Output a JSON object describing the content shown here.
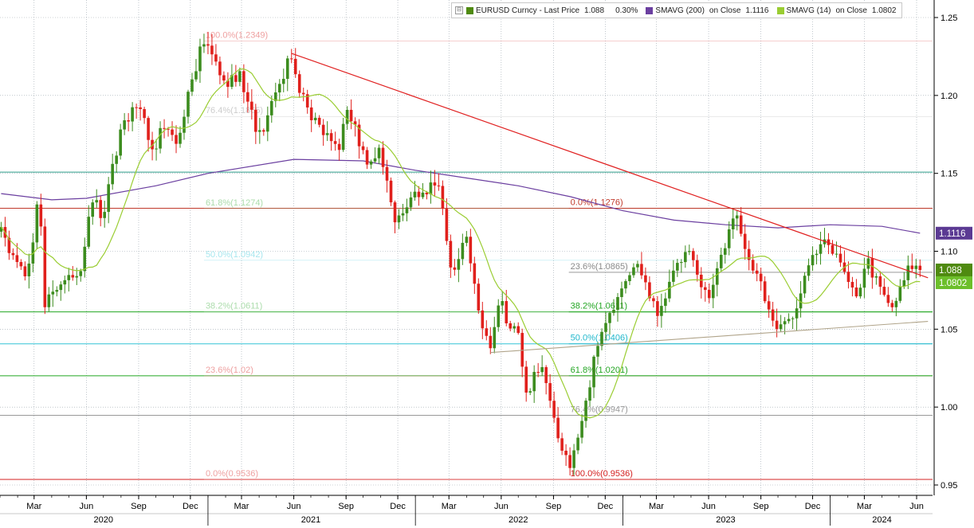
{
  "legend": {
    "close_glyph": "⊟",
    "price": {
      "name": "EURUSD Curncy - Last Price",
      "value": "1.088",
      "change": "0.30%",
      "color": "#4f8a10"
    },
    "sma200": {
      "name": "SMAVG (200)",
      "on": "on Close",
      "value": "1.1116",
      "color": "#6b3fa0"
    },
    "sma14": {
      "name": "SMAVG (14)",
      "on": "on Close",
      "value": "1.0802",
      "color": "#9acd32"
    }
  },
  "price_tags": [
    {
      "label": "1.1116",
      "value": 1.1116,
      "bg": "#5b3a93",
      "fg": "#ffffff"
    },
    {
      "label": "1.088",
      "value": 1.088,
      "bg": "#4f8a10",
      "fg": "#ffffff"
    },
    {
      "label": "1.0802",
      "value": 1.0802,
      "bg": "#6cbf2a",
      "fg": "#ffffff"
    }
  ],
  "colors": {
    "up": "#3c8c1e",
    "down": "#e0201c",
    "trend": "#e02020",
    "support": "#b0a48a",
    "sma200": "#6b3fa0",
    "sma14": "#9acd32"
  },
  "chart_data": {
    "type": "candlestick",
    "y_axis": {
      "min": 0.95,
      "max": 1.25,
      "ticks": [
        "0.95",
        "1.00",
        "1.05",
        "1.10",
        "1.15",
        "1.20",
        "1.25"
      ],
      "position": "right"
    },
    "x_axis": {
      "month_labels": [
        {
          "label": "Mar",
          "date": "2020-03-01"
        },
        {
          "label": "Jun",
          "date": "2020-06-01"
        },
        {
          "label": "Sep",
          "date": "2020-09-01"
        },
        {
          "label": "Dec",
          "date": "2020-12-01"
        },
        {
          "label": "Mar",
          "date": "2021-03-01"
        },
        {
          "label": "Jun",
          "date": "2021-06-01"
        },
        {
          "label": "Sep",
          "date": "2021-09-01"
        },
        {
          "label": "Dec",
          "date": "2021-12-01"
        },
        {
          "label": "Mar",
          "date": "2022-03-01"
        },
        {
          "label": "Jun",
          "date": "2022-06-01"
        },
        {
          "label": "Sep",
          "date": "2022-09-01"
        },
        {
          "label": "Dec",
          "date": "2022-12-01"
        },
        {
          "label": "Mar",
          "date": "2023-03-01"
        },
        {
          "label": "Jun",
          "date": "2023-06-01"
        },
        {
          "label": "Sep",
          "date": "2023-09-01"
        },
        {
          "label": "Dec",
          "date": "2023-12-01"
        },
        {
          "label": "Mar",
          "date": "2024-03-01"
        },
        {
          "label": "Jun",
          "date": "2024-06-01"
        }
      ],
      "year_labels": [
        {
          "label": "2020",
          "date": "2020-07-01"
        },
        {
          "label": "2021",
          "date": "2021-07-01"
        },
        {
          "label": "2022",
          "date": "2022-07-01"
        },
        {
          "label": "2023",
          "date": "2023-07-01"
        },
        {
          "label": "2024",
          "date": "2024-04-01"
        }
      ],
      "year_dividers": [
        "2021-01-01",
        "2022-01-01",
        "2023-01-01",
        "2024-01-01"
      ]
    },
    "price_anchors": [
      {
        "date": "2020-01-03",
        "value": 1.112
      },
      {
        "date": "2020-02-18",
        "value": 1.08
      },
      {
        "date": "2020-03-09",
        "value": 1.138
      },
      {
        "date": "2020-03-20",
        "value": 1.068
      },
      {
        "date": "2020-04-24",
        "value": 1.082
      },
      {
        "date": "2020-05-25",
        "value": 1.09
      },
      {
        "date": "2020-06-10",
        "value": 1.135
      },
      {
        "date": "2020-06-30",
        "value": 1.122
      },
      {
        "date": "2020-07-31",
        "value": 1.178
      },
      {
        "date": "2020-09-01",
        "value": 1.198
      },
      {
        "date": "2020-09-25",
        "value": 1.164
      },
      {
        "date": "2020-10-20",
        "value": 1.185
      },
      {
        "date": "2020-11-04",
        "value": 1.166
      },
      {
        "date": "2020-12-17",
        "value": 1.228
      },
      {
        "date": "2021-01-06",
        "value": 1.232
      },
      {
        "date": "2021-02-01",
        "value": 1.205
      },
      {
        "date": "2021-02-25",
        "value": 1.215
      },
      {
        "date": "2021-03-31",
        "value": 1.172
      },
      {
        "date": "2021-05-25",
        "value": 1.224
      },
      {
        "date": "2021-06-30",
        "value": 1.185
      },
      {
        "date": "2021-08-20",
        "value": 1.168
      },
      {
        "date": "2021-09-03",
        "value": 1.19
      },
      {
        "date": "2021-10-12",
        "value": 1.155
      },
      {
        "date": "2021-10-28",
        "value": 1.168
      },
      {
        "date": "2021-11-24",
        "value": 1.12
      },
      {
        "date": "2021-12-31",
        "value": 1.137
      },
      {
        "date": "2022-01-14",
        "value": 1.138
      },
      {
        "date": "2022-02-10",
        "value": 1.145
      },
      {
        "date": "2022-03-07",
        "value": 1.085
      },
      {
        "date": "2022-03-31",
        "value": 1.11
      },
      {
        "date": "2022-04-28",
        "value": 1.05
      },
      {
        "date": "2022-05-13",
        "value": 1.04
      },
      {
        "date": "2022-05-30",
        "value": 1.075
      },
      {
        "date": "2022-06-15",
        "value": 1.045
      },
      {
        "date": "2022-06-27",
        "value": 1.057
      },
      {
        "date": "2022-07-14",
        "value": 1.005
      },
      {
        "date": "2022-08-10",
        "value": 1.03
      },
      {
        "date": "2022-08-29",
        "value": 0.995
      },
      {
        "date": "2022-09-28",
        "value": 0.96
      },
      {
        "date": "2022-10-27",
        "value": 0.998
      },
      {
        "date": "2022-11-15",
        "value": 1.04
      },
      {
        "date": "2022-12-14",
        "value": 1.065
      },
      {
        "date": "2023-01-26",
        "value": 1.09
      },
      {
        "date": "2023-03-06",
        "value": 1.06
      },
      {
        "date": "2023-03-31",
        "value": 1.085
      },
      {
        "date": "2023-04-26",
        "value": 1.105
      },
      {
        "date": "2023-05-31",
        "value": 1.068
      },
      {
        "date": "2023-06-22",
        "value": 1.096
      },
      {
        "date": "2023-07-18",
        "value": 1.122
      },
      {
        "date": "2023-08-24",
        "value": 1.085
      },
      {
        "date": "2023-10-03",
        "value": 1.048
      },
      {
        "date": "2023-10-30",
        "value": 1.06
      },
      {
        "date": "2023-11-29",
        "value": 1.098
      },
      {
        "date": "2023-12-28",
        "value": 1.108
      },
      {
        "date": "2024-01-25",
        "value": 1.086
      },
      {
        "date": "2024-02-14",
        "value": 1.072
      },
      {
        "date": "2024-03-08",
        "value": 1.092
      },
      {
        "date": "2024-04-16",
        "value": 1.062
      },
      {
        "date": "2024-05-15",
        "value": 1.087
      },
      {
        "date": "2024-06-07",
        "value": 1.088
      }
    ],
    "sma200_anchors": [
      {
        "date": "2020-01-03",
        "value": 1.137
      },
      {
        "date": "2020-04-01",
        "value": 1.133
      },
      {
        "date": "2020-06-01",
        "value": 1.134
      },
      {
        "date": "2020-10-01",
        "value": 1.142
      },
      {
        "date": "2021-01-01",
        "value": 1.15
      },
      {
        "date": "2021-06-01",
        "value": 1.159
      },
      {
        "date": "2021-10-01",
        "value": 1.158
      },
      {
        "date": "2022-01-01",
        "value": 1.152
      },
      {
        "date": "2022-04-01",
        "value": 1.147
      },
      {
        "date": "2022-07-01",
        "value": 1.142
      },
      {
        "date": "2022-10-01",
        "value": 1.135
      },
      {
        "date": "2023-01-01",
        "value": 1.126
      },
      {
        "date": "2023-04-01",
        "value": 1.12
      },
      {
        "date": "2023-07-01",
        "value": 1.117
      },
      {
        "date": "2023-10-01",
        "value": 1.115
      },
      {
        "date": "2024-01-01",
        "value": 1.117
      },
      {
        "date": "2024-04-01",
        "value": 1.116
      },
      {
        "date": "2024-06-07",
        "value": 1.1116
      }
    ],
    "lines": [
      {
        "kind": "trend",
        "from": {
          "date": "2021-05-28",
          "value": 1.227
        },
        "to": {
          "date": "2024-06-21",
          "value": 1.083
        }
      },
      {
        "kind": "support",
        "from": {
          "date": "2022-05-13",
          "value": 1.035
        },
        "to": {
          "date": "2024-06-21",
          "value": 1.055
        }
      }
    ],
    "horizontal_levels": [
      {
        "value": 1.1508,
        "color": "#2e9e8a",
        "width": 1
      },
      {
        "value": 1.1276,
        "color": "#c0392b",
        "width": 1
      },
      {
        "value": 1.0611,
        "color": "#23a623",
        "width": 1
      },
      {
        "value": 1.0406,
        "color": "#33c4d6",
        "width": 1
      },
      {
        "value": 1.0201,
        "color": "#23a623",
        "width": 1
      },
      {
        "value": 0.9947,
        "color": "#9a9a9a",
        "width": 1
      },
      {
        "value": 0.9536,
        "color": "#d42020",
        "width": 1
      }
    ],
    "fib_sets": [
      {
        "id": "2020-21",
        "line_start": "2020-12-25",
        "faded": true,
        "levels": [
          {
            "label": "100.0%(1.2349)",
            "value": 1.2349,
            "color": "#e88080"
          },
          {
            "label": "76.4%(1.1865)",
            "value": 1.1865,
            "color": "#bbbbbb"
          },
          {
            "label": "61.8%(1.1274)",
            "value": 1.1274,
            "color": "#8fd08f"
          },
          {
            "label": "50.0%(1.0942)",
            "value": 1.0942,
            "color": "#88dde8"
          },
          {
            "label": "38.2%(1.0611)",
            "value": 1.0611,
            "color": "#8fd08f"
          },
          {
            "label": "23.6%(1.02)",
            "value": 1.02,
            "color": "#e88080"
          },
          {
            "label": "0.0%(0.9536)",
            "value": 0.9536,
            "color": "#e88080"
          }
        ]
      },
      {
        "id": "2022-23",
        "line_start": "2022-09-28",
        "faded": false,
        "levels": [
          {
            "label": "0.0%(1.1276)",
            "value": 1.1276,
            "color": "#c0392b"
          },
          {
            "label": "23.6%(1.0865)",
            "value": 1.0865,
            "color": "#8a8a8a"
          },
          {
            "label": "38.2%(1.0611)",
            "value": 1.0611,
            "color": "#23a623"
          },
          {
            "label": "50.0%(1.0406)",
            "value": 1.0406,
            "color": "#22b8cc"
          },
          {
            "label": "61.8%(1.0201)",
            "value": 1.0201,
            "color": "#23a623"
          },
          {
            "label": "76.4%(0.9947)",
            "value": 0.9947,
            "color": "#9a9a9a"
          },
          {
            "label": "100.0%(0.9536)",
            "value": 0.9536,
            "color": "#d42020"
          }
        ]
      }
    ],
    "grid": true,
    "legend_position": "top-right"
  }
}
